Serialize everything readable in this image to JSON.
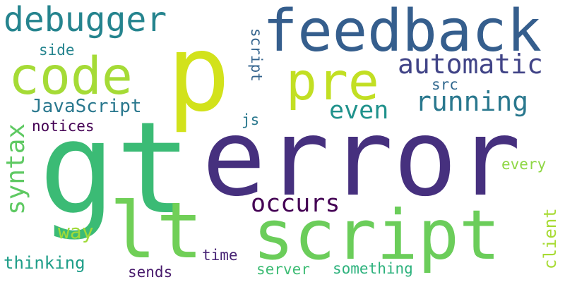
{
  "words": [
    {
      "text": "p",
      "color": "#d2e21b"
    },
    {
      "text": "gt",
      "color": "#3bbb75"
    },
    {
      "text": "error",
      "color": "#46307e"
    },
    {
      "text": "lt",
      "color": "#70cf57"
    },
    {
      "text": "script",
      "color": "#6bcd5a"
    },
    {
      "text": "feedback",
      "color": "#355e8d"
    },
    {
      "text": "code",
      "color": "#a5db36"
    },
    {
      "text": "pre",
      "color": "#c2df23"
    },
    {
      "text": "debugger",
      "color": "#25848e"
    },
    {
      "text": "automatic",
      "color": "#414487"
    },
    {
      "text": "running",
      "color": "#2a788e"
    },
    {
      "text": "even",
      "color": "#20928c"
    },
    {
      "text": "occurs",
      "color": "#440154"
    },
    {
      "text": "syntax",
      "color": "#5ec962"
    },
    {
      "text": "JavaScript",
      "color": "#2a788e"
    },
    {
      "text": "script",
      "color": "#33638d"
    },
    {
      "text": "side",
      "color": "#25848e"
    },
    {
      "text": "notices",
      "color": "#440154"
    },
    {
      "text": "src",
      "color": "#31688e"
    },
    {
      "text": "js",
      "color": "#2a788e"
    },
    {
      "text": "way",
      "color": "#a0da39"
    },
    {
      "text": "every",
      "color": "#8fd744"
    },
    {
      "text": "client",
      "color": "#a8db34"
    },
    {
      "text": "thinking",
      "color": "#1f9e89"
    },
    {
      "text": "time",
      "color": "#482475"
    },
    {
      "text": "sends",
      "color": "#481a6c"
    },
    {
      "text": "server",
      "color": "#3dbc74"
    },
    {
      "text": "something",
      "color": "#2db27d"
    }
  ]
}
